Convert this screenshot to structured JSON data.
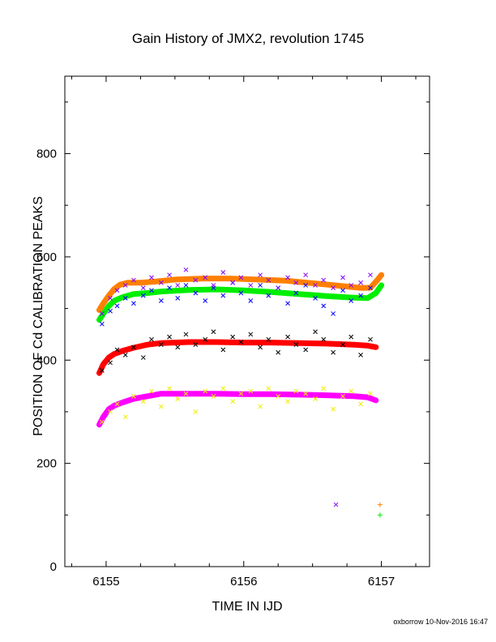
{
  "chart_data": {
    "type": "scatter",
    "title": "Gain History of JMX2, revolution 1745",
    "xlabel": "TIME IN IJD",
    "ylabel": "POSITION OF Cd CALIBRATION PEAKS",
    "xlim": [
      6154.7,
      6157.35
    ],
    "ylim": [
      0,
      950
    ],
    "x_ticks": [
      6155,
      6156,
      6157
    ],
    "y_ticks": [
      0,
      200,
      400,
      600,
      800
    ],
    "footer": "oxborrow 10-Nov-2016 16:47",
    "series": [
      {
        "color": "#ff00ff",
        "marker": "line",
        "x": [
          6154.95,
          6154.98,
          6155.02,
          6155.06,
          6155.12,
          6155.2,
          6155.3,
          6155.4,
          6155.6,
          6155.8,
          6156.0,
          6156.2,
          6156.4,
          6156.6,
          6156.8,
          6156.9,
          6156.96
        ],
        "y": [
          275,
          290,
          305,
          312,
          318,
          325,
          330,
          335,
          335,
          335,
          334,
          334,
          333,
          332,
          330,
          328,
          322
        ]
      },
      {
        "color": "#ff0000",
        "marker": "line",
        "x": [
          6154.95,
          6154.98,
          6155.02,
          6155.06,
          6155.12,
          6155.2,
          6155.3,
          6155.4,
          6155.6,
          6155.8,
          6156.0,
          6156.2,
          6156.4,
          6156.6,
          6156.8,
          6156.9,
          6156.96
        ],
        "y": [
          375,
          392,
          405,
          412,
          418,
          424,
          430,
          433,
          435,
          435,
          434,
          434,
          433,
          432,
          430,
          428,
          425
        ]
      },
      {
        "color": "#00ee00",
        "marker": "line",
        "x": [
          6154.95,
          6154.98,
          6155.02,
          6155.06,
          6155.12,
          6155.2,
          6155.3,
          6155.4,
          6155.6,
          6155.8,
          6156.0,
          6156.2,
          6156.4,
          6156.6,
          6156.8,
          6156.9,
          6156.96,
          6157.0
        ],
        "y": [
          478,
          490,
          505,
          515,
          522,
          528,
          530,
          533,
          536,
          537,
          535,
          532,
          528,
          524,
          521,
          520,
          530,
          545
        ]
      },
      {
        "color": "#ff7f00",
        "marker": "line",
        "x": [
          6154.95,
          6154.98,
          6155.02,
          6155.06,
          6155.1,
          6155.16,
          6155.25,
          6155.35,
          6155.5,
          6155.7,
          6155.9,
          6156.1,
          6156.3,
          6156.5,
          6156.7,
          6156.85,
          6156.92,
          6156.97,
          6157.0
        ],
        "y": [
          497,
          510,
          525,
          538,
          546,
          550,
          550,
          552,
          556,
          558,
          558,
          556,
          554,
          549,
          544,
          540,
          540,
          555,
          565
        ]
      },
      {
        "color": "#000000",
        "marker": "cross",
        "x": [
          6154.97,
          6155.03,
          6155.08,
          6155.14,
          6155.2,
          6155.27,
          6155.33,
          6155.4,
          6155.46,
          6155.52,
          6155.58,
          6155.65,
          6155.72,
          6155.78,
          6155.85,
          6155.92,
          6155.98,
          6156.05,
          6156.12,
          6156.18,
          6156.25,
          6156.32,
          6156.38,
          6156.45,
          6156.52,
          6156.58,
          6156.65,
          6156.72,
          6156.78,
          6156.85,
          6156.92
        ],
        "y": [
          380,
          395,
          420,
          410,
          425,
          405,
          440,
          430,
          445,
          425,
          450,
          430,
          440,
          455,
          420,
          445,
          435,
          450,
          425,
          440,
          415,
          445,
          430,
          420,
          455,
          440,
          415,
          430,
          445,
          410,
          440
        ]
      },
      {
        "color": "#eeee00",
        "marker": "cross",
        "x": [
          6154.97,
          6155.03,
          6155.08,
          6155.14,
          6155.2,
          6155.27,
          6155.33,
          6155.4,
          6155.46,
          6155.52,
          6155.58,
          6155.65,
          6155.72,
          6155.78,
          6155.85,
          6155.92,
          6155.98,
          6156.05,
          6156.12,
          6156.18,
          6156.25,
          6156.32,
          6156.38,
          6156.45,
          6156.52,
          6156.58,
          6156.65,
          6156.72,
          6156.78,
          6156.85,
          6156.92
        ],
        "y": [
          280,
          300,
          315,
          290,
          330,
          320,
          340,
          310,
          345,
          325,
          335,
          300,
          340,
          330,
          345,
          320,
          335,
          340,
          310,
          345,
          330,
          320,
          340,
          335,
          325,
          345,
          305,
          330,
          340,
          315,
          335
        ]
      },
      {
        "color": "#0000ff",
        "marker": "cross",
        "x": [
          6154.97,
          6155.03,
          6155.08,
          6155.14,
          6155.2,
          6155.27,
          6155.33,
          6155.4,
          6155.46,
          6155.52,
          6155.58,
          6155.65,
          6155.72,
          6155.78,
          6155.85,
          6155.92,
          6155.98,
          6156.05,
          6156.12,
          6156.18,
          6156.25,
          6156.32,
          6156.38,
          6156.45,
          6156.52,
          6156.58,
          6156.65,
          6156.72,
          6156.78,
          6156.85,
          6156.92
        ],
        "y": [
          470,
          495,
          505,
          520,
          510,
          525,
          535,
          515,
          540,
          520,
          545,
          530,
          515,
          540,
          525,
          550,
          530,
          515,
          545,
          525,
          540,
          510,
          530,
          545,
          520,
          505,
          490,
          535,
          515,
          525,
          540
        ]
      },
      {
        "color": "#8000ff",
        "marker": "cross",
        "x": [
          6154.97,
          6155.03,
          6155.08,
          6155.14,
          6155.2,
          6155.27,
          6155.33,
          6155.4,
          6155.46,
          6155.52,
          6155.58,
          6155.65,
          6155.72,
          6155.78,
          6155.85,
          6155.92,
          6155.98,
          6156.05,
          6156.12,
          6156.18,
          6156.25,
          6156.32,
          6156.38,
          6156.45,
          6156.52,
          6156.58,
          6156.65,
          6156.72,
          6156.78,
          6156.85,
          6156.92,
          6156.67
        ],
        "y": [
          490,
          520,
          535,
          545,
          555,
          540,
          560,
          550,
          565,
          545,
          575,
          555,
          560,
          545,
          570,
          550,
          560,
          545,
          565,
          555,
          540,
          560,
          550,
          565,
          545,
          555,
          540,
          560,
          545,
          550,
          565,
          120
        ]
      },
      {
        "color": "#ff7f00",
        "marker": "plus",
        "x": [
          6156.99
        ],
        "y": [
          120
        ]
      },
      {
        "color": "#00ee00",
        "marker": "plus",
        "x": [
          6156.99
        ],
        "y": [
          100
        ]
      }
    ]
  }
}
